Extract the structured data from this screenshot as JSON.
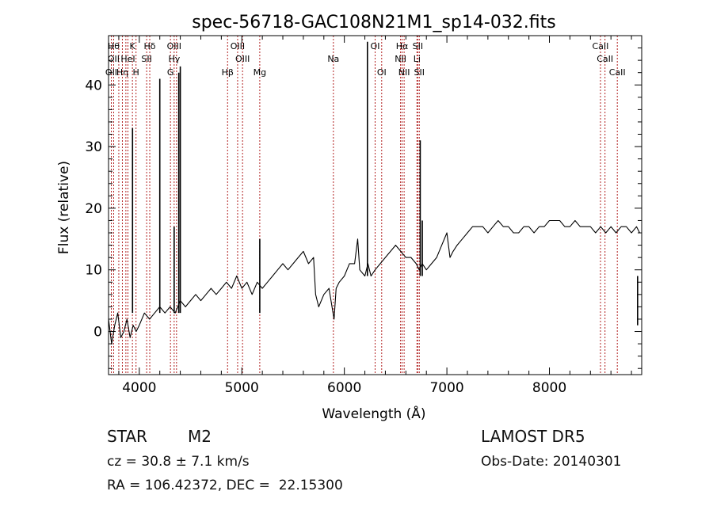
{
  "title": "spec-56718-GAC108N21M1_sp14-032.fits",
  "info": {
    "object_class": "STAR",
    "subclass": "M2",
    "survey": "LAMOST DR5",
    "cz": "cz = 30.8 ± 7.1 km/s",
    "obs_date": "Obs-Date: 20140301",
    "radec": "RA = 106.42372, DEC =  22.15300"
  },
  "chart_data": {
    "type": "line",
    "title": "spec-56718-GAC108N21M1_sp14-032.fits",
    "xlabel": "Wavelength (Å)",
    "ylabel": "Flux (relative)",
    "xlim": [
      3700,
      8900
    ],
    "ylim": [
      -7,
      48
    ],
    "xticks": [
      4000,
      5000,
      6000,
      7000,
      8000
    ],
    "yticks": [
      0,
      10,
      20,
      30,
      40
    ],
    "line_color": "#000000",
    "marker_color": "#b22222",
    "series": [
      {
        "x": [
          3700,
          3730,
          3760,
          3790,
          3820,
          3850,
          3880,
          3910,
          3940,
          3970,
          4000,
          4050,
          4100,
          4150,
          4200,
          4250,
          4300,
          4350,
          4400,
          4450,
          4500,
          4550,
          4600,
          4650,
          4700,
          4750,
          4800,
          4850,
          4900,
          4950,
          5000,
          5050,
          5100,
          5150,
          5200,
          5250,
          5300,
          5350,
          5400,
          5450,
          5500,
          5550,
          5600,
          5650,
          5700,
          5720,
          5750,
          5800,
          5850,
          5880,
          5900,
          5920,
          5950,
          6000,
          6050,
          6100,
          6130,
          6150,
          6200,
          6230,
          6260,
          6300,
          6350,
          6400,
          6450,
          6500,
          6550,
          6600,
          6650,
          6700,
          6730,
          6760,
          6800,
          6850,
          6900,
          6950,
          7000,
          7030,
          7060,
          7100,
          7150,
          7200,
          7250,
          7300,
          7350,
          7400,
          7450,
          7500,
          7550,
          7600,
          7650,
          7700,
          7750,
          7800,
          7850,
          7900,
          7950,
          8000,
          8050,
          8100,
          8150,
          8200,
          8250,
          8300,
          8350,
          8400,
          8450,
          8500,
          8550,
          8600,
          8650,
          8700,
          8750,
          8800,
          8850,
          8880
        ],
        "y": [
          2,
          -2,
          1,
          3,
          -1,
          0,
          2,
          -1,
          1,
          0,
          1,
          3,
          2,
          3,
          4,
          3,
          4,
          3,
          5,
          4,
          5,
          6,
          5,
          6,
          7,
          6,
          7,
          8,
          7,
          9,
          7,
          8,
          6,
          8,
          7,
          8,
          9,
          10,
          11,
          10,
          11,
          12,
          13,
          11,
          12,
          6,
          4,
          6,
          7,
          4,
          2,
          7,
          8,
          9,
          11,
          11,
          15,
          10,
          9,
          11,
          9,
          10,
          11,
          12,
          13,
          14,
          13,
          12,
          12,
          11,
          10,
          11,
          10,
          11,
          12,
          14,
          16,
          12,
          13,
          14,
          15,
          16,
          17,
          17,
          17,
          16,
          17,
          18,
          17,
          17,
          16,
          16,
          17,
          17,
          16,
          17,
          17,
          18,
          18,
          18,
          17,
          17,
          18,
          17,
          17,
          17,
          16,
          17,
          16,
          17,
          16,
          17,
          17,
          16,
          17,
          16
        ]
      }
    ],
    "spikes": [
      {
        "x": 3934,
        "top": 33
      },
      {
        "x": 4200,
        "top": 41
      },
      {
        "x": 4340,
        "top": 17
      },
      {
        "x": 4385,
        "top": 42
      },
      {
        "x": 4400,
        "top": 43
      },
      {
        "x": 5175,
        "top": 15
      },
      {
        "x": 6225,
        "top": 47
      },
      {
        "x": 6740,
        "top": 31
      },
      {
        "x": 6760,
        "top": 18
      },
      {
        "x": 8860,
        "top": 1
      }
    ],
    "line_markers": [
      {
        "x": 3727,
        "labels": [
          "OII"
        ],
        "row": 3
      },
      {
        "x": 3750,
        "labels": [
          "Hθ",
          "OII"
        ],
        "row": 1
      },
      {
        "x": 3800,
        "labels": [],
        "row": 1
      },
      {
        "x": 3835,
        "labels": [
          "Hη"
        ],
        "row": 3
      },
      {
        "x": 3869,
        "labels": [],
        "row": 1
      },
      {
        "x": 3889,
        "labels": [
          "HeI"
        ],
        "row": 2
      },
      {
        "x": 3933,
        "labels": [
          "K"
        ],
        "row": 1
      },
      {
        "x": 3968,
        "labels": [
          "H"
        ],
        "row": 3
      },
      {
        "x": 4072,
        "labels": [
          "SII"
        ],
        "row": 2
      },
      {
        "x": 4102,
        "labels": [
          "Hδ"
        ],
        "row": 1
      },
      {
        "x": 4304,
        "labels": [
          "G"
        ],
        "row": 3
      },
      {
        "x": 4340,
        "labels": [
          "OIII",
          "Hγ"
        ],
        "row": 1
      },
      {
        "x": 4363,
        "labels": [],
        "row": 1
      },
      {
        "x": 4861,
        "labels": [
          "Hβ"
        ],
        "row": 3
      },
      {
        "x": 4959,
        "labels": [
          "OIII"
        ],
        "row": 1
      },
      {
        "x": 5007,
        "labels": [
          "OIII"
        ],
        "row": 2
      },
      {
        "x": 5175,
        "labels": [
          "Mg"
        ],
        "row": 3
      },
      {
        "x": 5893,
        "labels": [
          "Na"
        ],
        "row": 2
      },
      {
        "x": 6300,
        "labels": [
          "OI"
        ],
        "row": 1
      },
      {
        "x": 6364,
        "labels": [
          "OI"
        ],
        "row": 3
      },
      {
        "x": 6548,
        "labels": [
          "NII"
        ],
        "row": 2
      },
      {
        "x": 6563,
        "labels": [
          "Hα"
        ],
        "row": 1
      },
      {
        "x": 6583,
        "labels": [
          "NII"
        ],
        "row": 3
      },
      {
        "x": 6708,
        "labels": [
          "Li"
        ],
        "row": 2
      },
      {
        "x": 6716,
        "labels": [
          "SII"
        ],
        "row": 1
      },
      {
        "x": 6731,
        "labels": [
          "SII"
        ],
        "row": 3
      },
      {
        "x": 8498,
        "labels": [
          "CaII"
        ],
        "row": 1
      },
      {
        "x": 8542,
        "labels": [
          "CaII"
        ],
        "row": 2
      },
      {
        "x": 8662,
        "labels": [
          "CaII"
        ],
        "row": 3
      }
    ]
  }
}
